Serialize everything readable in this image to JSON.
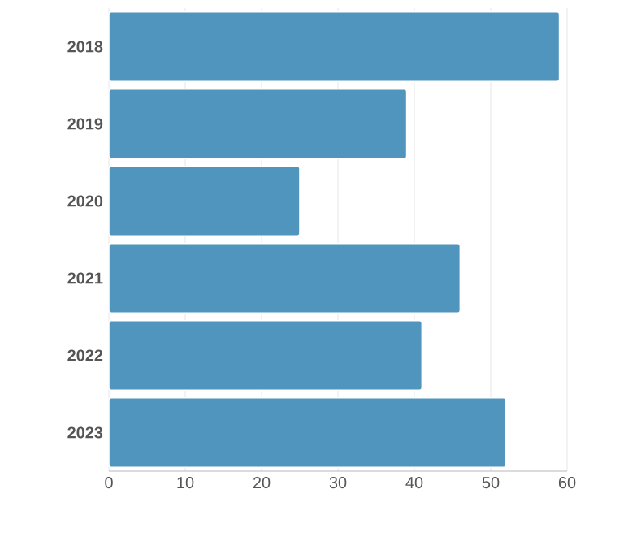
{
  "chart_data": {
    "type": "bar",
    "orientation": "horizontal",
    "categories": [
      "2018",
      "2019",
      "2020",
      "2021",
      "2022",
      "2023"
    ],
    "values": [
      59,
      39,
      25,
      46,
      41,
      52
    ],
    "color": "#4f95bd",
    "xlim": [
      0,
      60
    ],
    "xticks": [
      0,
      10,
      20,
      30,
      40,
      50,
      60
    ],
    "grid": "x"
  }
}
